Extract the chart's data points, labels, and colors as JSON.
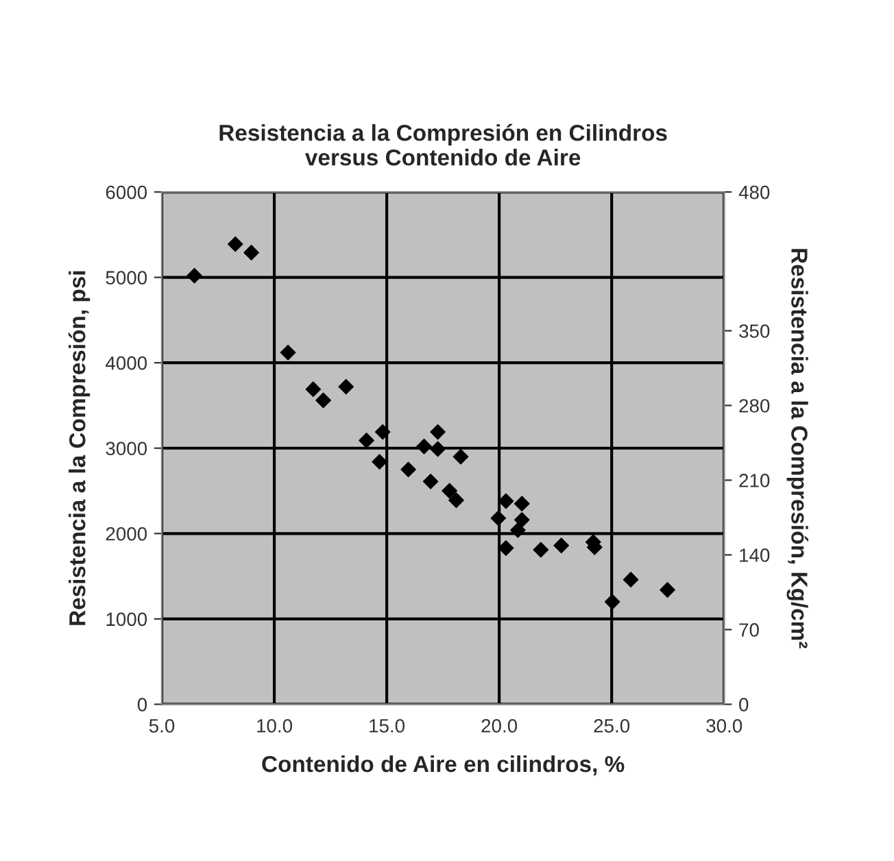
{
  "chart_data": {
    "type": "scatter",
    "title": "Resistencia a la Compresión en Cilindros\nversus Contenido de Aire",
    "xlabel": "Contenido de Aire en cilindros, %",
    "ylabel": "Resistencia a la Compresión, psi",
    "y2label": "Resistencia a la Compresión, Kg/cm²",
    "x": [
      6.45,
      8.27,
      8.98,
      10.61,
      11.73,
      12.18,
      13.19,
      14.1,
      14.82,
      14.68,
      15.96,
      16.66,
      16.95,
      17.27,
      17.27,
      18.29,
      17.79,
      18.09,
      20.3,
      21.01,
      19.96,
      21.01,
      20.83,
      20.3,
      21.85,
      22.76,
      24.18,
      24.24,
      25.03,
      25.85,
      27.48
    ],
    "series": [
      {
        "color": "#000000",
        "values": [
          5020,
          5390,
          5290,
          4120,
          3690,
          3560,
          3720,
          3090,
          3190,
          2840,
          2750,
          3020,
          2610,
          3190,
          2990,
          2900,
          2500,
          2390,
          2380,
          2350,
          2180,
          2160,
          2040,
          1830,
          1810,
          1860,
          1900,
          1840,
          1200,
          1460,
          1340
        ]
      }
    ],
    "xlim": [
      5,
      30
    ],
    "xticks": [
      {
        "value": 5,
        "label": "5.0"
      },
      {
        "value": 10,
        "label": "10.0"
      },
      {
        "value": 15,
        "label": "15.0"
      },
      {
        "value": 20,
        "label": "20.0"
      },
      {
        "value": 25,
        "label": "25.0"
      },
      {
        "value": 30,
        "label": "30.0"
      }
    ],
    "ylim": [
      0,
      6000
    ],
    "yticks": [
      0,
      1000,
      2000,
      3000,
      4000,
      5000,
      6000
    ],
    "y2lim": [
      0,
      480
    ],
    "y2ticks": [
      0,
      70,
      140,
      210,
      280,
      350,
      480
    ],
    "grid": true,
    "marker": "diamond"
  }
}
